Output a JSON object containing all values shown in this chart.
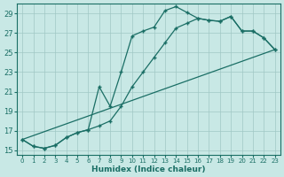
{
  "xlabel": "Humidex (Indice chaleur)",
  "xlim": [
    -0.5,
    23.5
  ],
  "ylim": [
    14.5,
    30.0
  ],
  "yticks": [
    15,
    17,
    19,
    21,
    23,
    25,
    27,
    29
  ],
  "xticks": [
    0,
    1,
    2,
    3,
    4,
    5,
    6,
    7,
    8,
    9,
    10,
    11,
    12,
    13,
    14,
    15,
    16,
    17,
    18,
    19,
    20,
    21,
    22,
    23
  ],
  "bg_color": "#c8e8e5",
  "grid_color": "#a0c8c5",
  "line_color": "#1a6e65",
  "line1_x": [
    0,
    1,
    2,
    3,
    4,
    5,
    6,
    7,
    8,
    9,
    10,
    11,
    12,
    13,
    14,
    15,
    16,
    17,
    18,
    19,
    20,
    21,
    22,
    23
  ],
  "line1_y": [
    16.1,
    15.4,
    15.2,
    15.5,
    16.3,
    16.8,
    17.1,
    21.5,
    19.5,
    23.0,
    26.7,
    27.2,
    27.6,
    29.3,
    29.7,
    29.1,
    28.5,
    28.3,
    28.2,
    28.7,
    27.2,
    27.2,
    26.5,
    25.3
  ],
  "line2_x": [
    0,
    1,
    2,
    3,
    4,
    5,
    6,
    7,
    8,
    9,
    10,
    11,
    12,
    13,
    14,
    15,
    16,
    17,
    18,
    19,
    20,
    21,
    22,
    23
  ],
  "line2_y": [
    16.1,
    15.4,
    15.2,
    15.5,
    16.3,
    16.8,
    17.1,
    17.5,
    18.0,
    19.5,
    21.5,
    23.0,
    24.5,
    26.0,
    27.5,
    28.0,
    28.5,
    28.3,
    28.2,
    28.7,
    27.2,
    27.2,
    26.5,
    25.3
  ],
  "line3_x": [
    0,
    23
  ],
  "line3_y": [
    16.1,
    25.3
  ]
}
